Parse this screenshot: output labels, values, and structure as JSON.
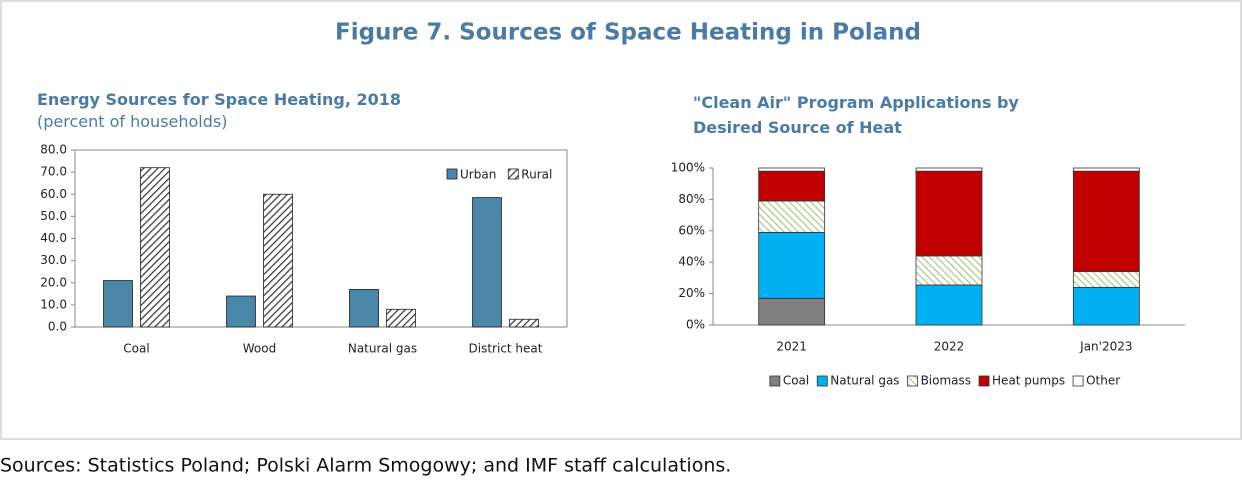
{
  "title": "Figure 7. Sources of Space Heating in Poland",
  "source": "Sources: Statistics Poland; Polski Alarm Smogowy; and IMF staff calculations.",
  "chart_data": [
    {
      "type": "bar",
      "title": "Energy Sources for Space Heating, 2018",
      "subtitle": "(percent of households)",
      "categories": [
        "Coal",
        "Wood",
        "Natural gas",
        "District heat"
      ],
      "series": [
        {
          "name": "Urban",
          "color": "#4a86a8",
          "values": [
            21,
            14,
            17,
            58.5
          ]
        },
        {
          "name": "Rural",
          "color": "hatch",
          "values": [
            72,
            60,
            8,
            3.5
          ]
        }
      ],
      "ylim": [
        0,
        80
      ],
      "yticks": [
        {
          "value": 0,
          "label": "0.0"
        },
        {
          "value": 10,
          "label": "10.0"
        },
        {
          "value": 20,
          "label": "20.0"
        },
        {
          "value": 30,
          "label": "30.0"
        },
        {
          "value": 40,
          "label": "40.0"
        },
        {
          "value": 50,
          "label": "50.0"
        },
        {
          "value": 60,
          "label": "60.0"
        },
        {
          "value": 70,
          "label": "70.0"
        },
        {
          "value": 80,
          "label": "80.0"
        }
      ],
      "legend": "top-right"
    },
    {
      "type": "stacked_bar",
      "title": "\"Clean Air\" Program Applications by Desired Source of Heat",
      "categories": [
        "2021",
        "2022",
        "Jan'2023"
      ],
      "series": [
        {
          "name": "Coal",
          "color": "#7f7f7f",
          "values": [
            17,
            0,
            0
          ]
        },
        {
          "name": "Natural gas",
          "color": "#00b0f0",
          "values": [
            42,
            25.5,
            24
          ]
        },
        {
          "name": "Biomass",
          "color": "greenhatch",
          "values": [
            20,
            18.5,
            10
          ]
        },
        {
          "name": "Heat pumps",
          "color": "#c00000",
          "values": [
            19,
            54,
            64
          ]
        },
        {
          "name": "Other",
          "color": "#ffffff",
          "values": [
            2,
            2,
            2
          ]
        }
      ],
      "ylim": [
        0,
        100
      ],
      "yticks": [
        {
          "value": 0,
          "label": "0%"
        },
        {
          "value": 20,
          "label": "20%"
        },
        {
          "value": 40,
          "label": "40%"
        },
        {
          "value": 60,
          "label": "60%"
        },
        {
          "value": 80,
          "label": "80%"
        },
        {
          "value": 100,
          "label": "100%"
        }
      ],
      "legend": "bottom"
    }
  ]
}
